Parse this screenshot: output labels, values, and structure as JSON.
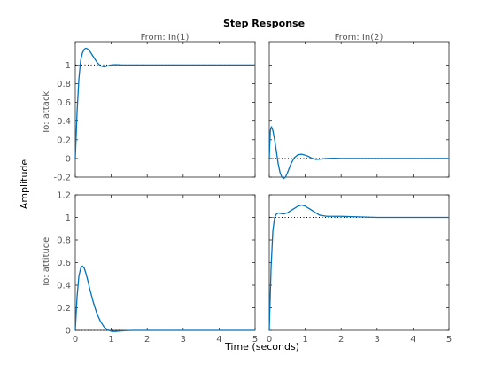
{
  "chart_data": {
    "type": "line",
    "title": "Step Response",
    "xlabel": "Time (seconds)",
    "ylabel": "Amplitude",
    "line_color": "#0072BD",
    "column_titles": [
      "From: In(1)",
      "From: In(2)"
    ],
    "row_labels": [
      "To: attack",
      "To: attitude"
    ],
    "xlim": [
      0,
      5
    ],
    "xticks": [
      0,
      1,
      2,
      3,
      4,
      5
    ],
    "rows": [
      {
        "ylim": [
          -0.2,
          1.25
        ],
        "yticks": [
          -0.2,
          0,
          0.2,
          0.4,
          0.6,
          0.8,
          1
        ],
        "panels": [
          {
            "steady_state": 1,
            "x": [
              0,
              0.05,
              0.1,
              0.15,
              0.2,
              0.25,
              0.3,
              0.35,
              0.4,
              0.45,
              0.5,
              0.55,
              0.6,
              0.65,
              0.7,
              0.75,
              0.8,
              0.85,
              0.9,
              0.95,
              1.0,
              1.1,
              1.2,
              1.3,
              1.4,
              1.6,
              1.8,
              2.0,
              2.5,
              3.0,
              4.0,
              5.0
            ],
            "y": [
              0,
              0.5,
              0.85,
              1.05,
              1.13,
              1.17,
              1.18,
              1.17,
              1.15,
              1.12,
              1.09,
              1.06,
              1.03,
              1.01,
              0.99,
              0.985,
              0.98,
              0.985,
              0.99,
              0.995,
              1.0,
              1.003,
              1.002,
              1.0,
              1.0,
              1.0,
              1.0,
              1.0,
              1.0,
              1.0,
              1.0,
              1.0
            ]
          },
          {
            "steady_state": 0,
            "x": [
              0,
              0.03,
              0.06,
              0.1,
              0.15,
              0.2,
              0.25,
              0.3,
              0.35,
              0.4,
              0.45,
              0.5,
              0.55,
              0.6,
              0.7,
              0.8,
              0.9,
              1.0,
              1.1,
              1.2,
              1.3,
              1.4,
              1.5,
              1.6,
              1.8,
              2.0,
              2.5,
              3.0,
              4.0,
              5.0
            ],
            "y": [
              0,
              0.3,
              0.34,
              0.3,
              0.2,
              0.07,
              -0.06,
              -0.15,
              -0.2,
              -0.215,
              -0.2,
              -0.16,
              -0.11,
              -0.06,
              0.01,
              0.04,
              0.045,
              0.035,
              0.02,
              0.0,
              -0.01,
              -0.008,
              -0.004,
              0.0,
              0.002,
              0.0,
              0.0,
              0.0,
              0.0,
              0.0
            ]
          }
        ]
      },
      {
        "ylim": [
          0,
          1.2
        ],
        "yticks": [
          0,
          0.2,
          0.4,
          0.6,
          0.8,
          1,
          1.2
        ],
        "panels": [
          {
            "steady_state": 0,
            "x": [
              0,
              0.05,
              0.1,
              0.15,
              0.2,
              0.25,
              0.3,
              0.35,
              0.4,
              0.5,
              0.6,
              0.7,
              0.8,
              0.9,
              1.0,
              1.1,
              1.2,
              1.4,
              1.6,
              2.0,
              3.0,
              4.0,
              5.0
            ],
            "y": [
              0,
              0.3,
              0.48,
              0.55,
              0.57,
              0.55,
              0.5,
              0.44,
              0.37,
              0.25,
              0.15,
              0.08,
              0.03,
              0.005,
              -0.008,
              -0.01,
              -0.007,
              -0.002,
              0.0,
              0.0,
              0.0,
              0.0,
              0.0
            ]
          },
          {
            "steady_state": 1,
            "x": [
              0,
              0.05,
              0.1,
              0.15,
              0.2,
              0.25,
              0.3,
              0.4,
              0.5,
              0.6,
              0.7,
              0.8,
              0.9,
              1.0,
              1.1,
              1.2,
              1.3,
              1.4,
              1.5,
              1.6,
              1.8,
              2.0,
              2.5,
              3.0,
              4.0,
              5.0
            ],
            "y": [
              0,
              0.55,
              0.88,
              1.0,
              1.03,
              1.04,
              1.035,
              1.03,
              1.04,
              1.06,
              1.08,
              1.1,
              1.11,
              1.1,
              1.08,
              1.06,
              1.04,
              1.02,
              1.015,
              1.01,
              1.01,
              1.01,
              1.005,
              1.0,
              1.0,
              1.0
            ]
          }
        ]
      }
    ]
  }
}
